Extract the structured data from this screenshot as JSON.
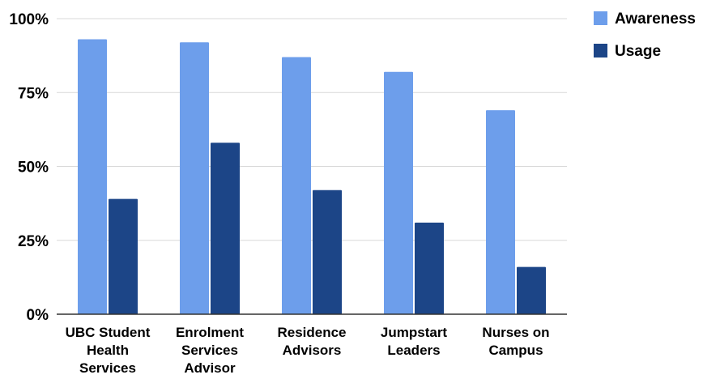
{
  "chart_data": {
    "type": "bar",
    "title": "",
    "xlabel": "",
    "ylabel": "",
    "categories": [
      [
        "UBC Student",
        "Health",
        "Services"
      ],
      [
        "Enrolment",
        "Services",
        "Advisor"
      ],
      [
        "Residence",
        "Advisors"
      ],
      [
        "Jumpstart",
        "Leaders"
      ],
      [
        "Nurses on",
        "Campus"
      ]
    ],
    "series": [
      {
        "name": "Awareness",
        "color": "#6d9eeb",
        "values": [
          93,
          92,
          87,
          82,
          69
        ]
      },
      {
        "name": "Usage",
        "color": "#1c4587",
        "values": [
          39,
          58,
          42,
          31,
          16
        ]
      }
    ],
    "ylim": [
      0,
      100
    ],
    "yticks": [
      0,
      25,
      50,
      75,
      100
    ],
    "ytick_labels": [
      "0%",
      "25%",
      "50%",
      "75%",
      "100%"
    ],
    "grid": true,
    "legend_position": "top-right"
  }
}
